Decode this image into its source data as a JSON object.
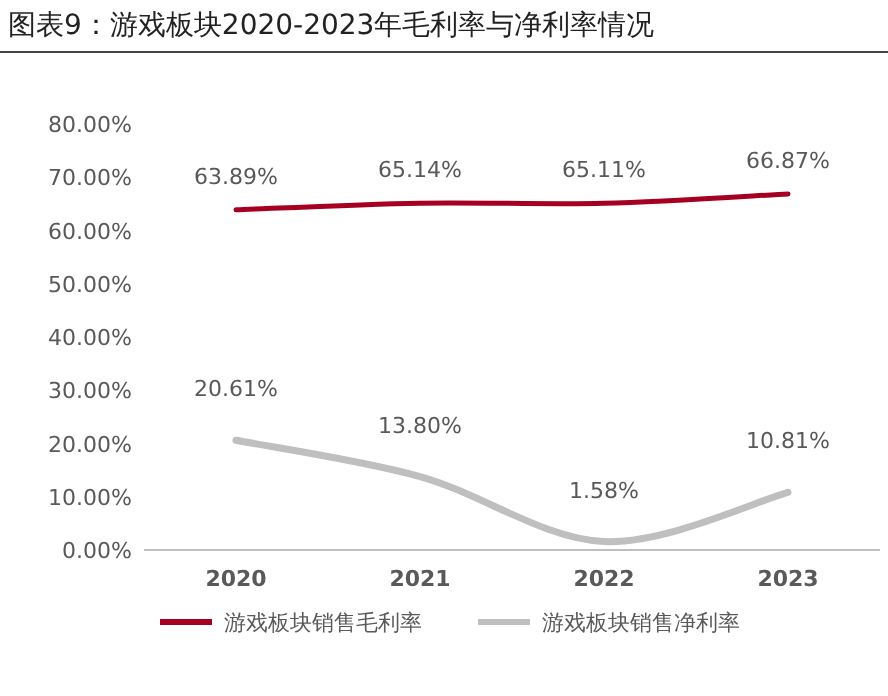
{
  "chart_data": {
    "type": "line",
    "title": "图表9：游戏板块2020-2023年毛利率与净利率情况",
    "categories": [
      "2020",
      "2021",
      "2022",
      "2023"
    ],
    "series": [
      {
        "name": "游戏板块销售毛利率",
        "color": "#a50021",
        "values": [
          63.89,
          65.14,
          65.11,
          66.87
        ],
        "value_labels": [
          "63.89%",
          "65.14%",
          "65.11%",
          "66.87%"
        ]
      },
      {
        "name": "游戏板块销售净利率",
        "color": "#bfbfbf",
        "values": [
          20.61,
          13.8,
          1.58,
          10.81
        ],
        "value_labels": [
          "20.61%",
          "13.80%",
          "1.58%",
          "10.81%"
        ]
      }
    ],
    "ylim": [
      0,
      80
    ],
    "yticks": [
      {
        "value": 0,
        "label": "0.00%"
      },
      {
        "value": 10,
        "label": "10.00%"
      },
      {
        "value": 20,
        "label": "20.00%"
      },
      {
        "value": 30,
        "label": "30.00%"
      },
      {
        "value": 40,
        "label": "40.00%"
      },
      {
        "value": 50,
        "label": "50.00%"
      },
      {
        "value": 60,
        "label": "60.00%"
      },
      {
        "value": 70,
        "label": "70.00%"
      },
      {
        "value": 80,
        "label": "80.00%"
      }
    ],
    "grid": false,
    "legend": "bottom",
    "marker": "none",
    "line_style": "solid"
  }
}
